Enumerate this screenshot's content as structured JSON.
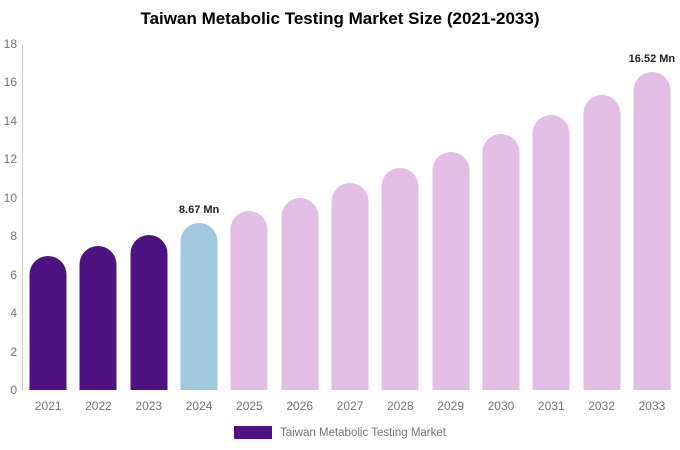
{
  "title": "Taiwan Metabolic Testing Market Size (2021-2033)",
  "legend": {
    "label": "Taiwan Metabolic Testing Market",
    "swatch_color": "#4E1380"
  },
  "colors": {
    "purple": "#4E1380",
    "blue": "#A2C8DD",
    "pink": "#E2BDE4",
    "axis_line": "#cccccc",
    "tick_text": "#757575",
    "title_text": "#000000",
    "annotation_text": "#222222"
  },
  "chart_data": {
    "type": "bar",
    "title": "Taiwan Metabolic Testing Market Size (2021-2033)",
    "xlabel": "",
    "ylabel": "",
    "categories": [
      "2021",
      "2022",
      "2023",
      "2024",
      "2025",
      "2026",
      "2027",
      "2028",
      "2029",
      "2030",
      "2031",
      "2032",
      "2033"
    ],
    "values": [
      6.99,
      7.51,
      8.07,
      8.67,
      9.31,
      10.0,
      10.75,
      11.54,
      12.4,
      13.32,
      14.31,
      15.37,
      16.52
    ],
    "bar_colors": [
      "#4E1380",
      "#4E1380",
      "#4E1380",
      "#A2C8DD",
      "#E2BDE4",
      "#E2BDE4",
      "#E2BDE4",
      "#E2BDE4",
      "#E2BDE4",
      "#E2BDE4",
      "#E2BDE4",
      "#E2BDE4",
      "#E2BDE4"
    ],
    "annotations": [
      {
        "category": "2024",
        "text": "8.67 Mn"
      },
      {
        "category": "2033",
        "text": "16.52 Mn"
      }
    ],
    "ylim": [
      0,
      18
    ],
    "yticks": [
      0,
      2,
      4,
      6,
      8,
      10,
      12,
      14,
      16,
      18
    ],
    "grid": false,
    "legend_position": "bottom",
    "legend_entries": [
      "Taiwan Metabolic Testing Market"
    ]
  }
}
